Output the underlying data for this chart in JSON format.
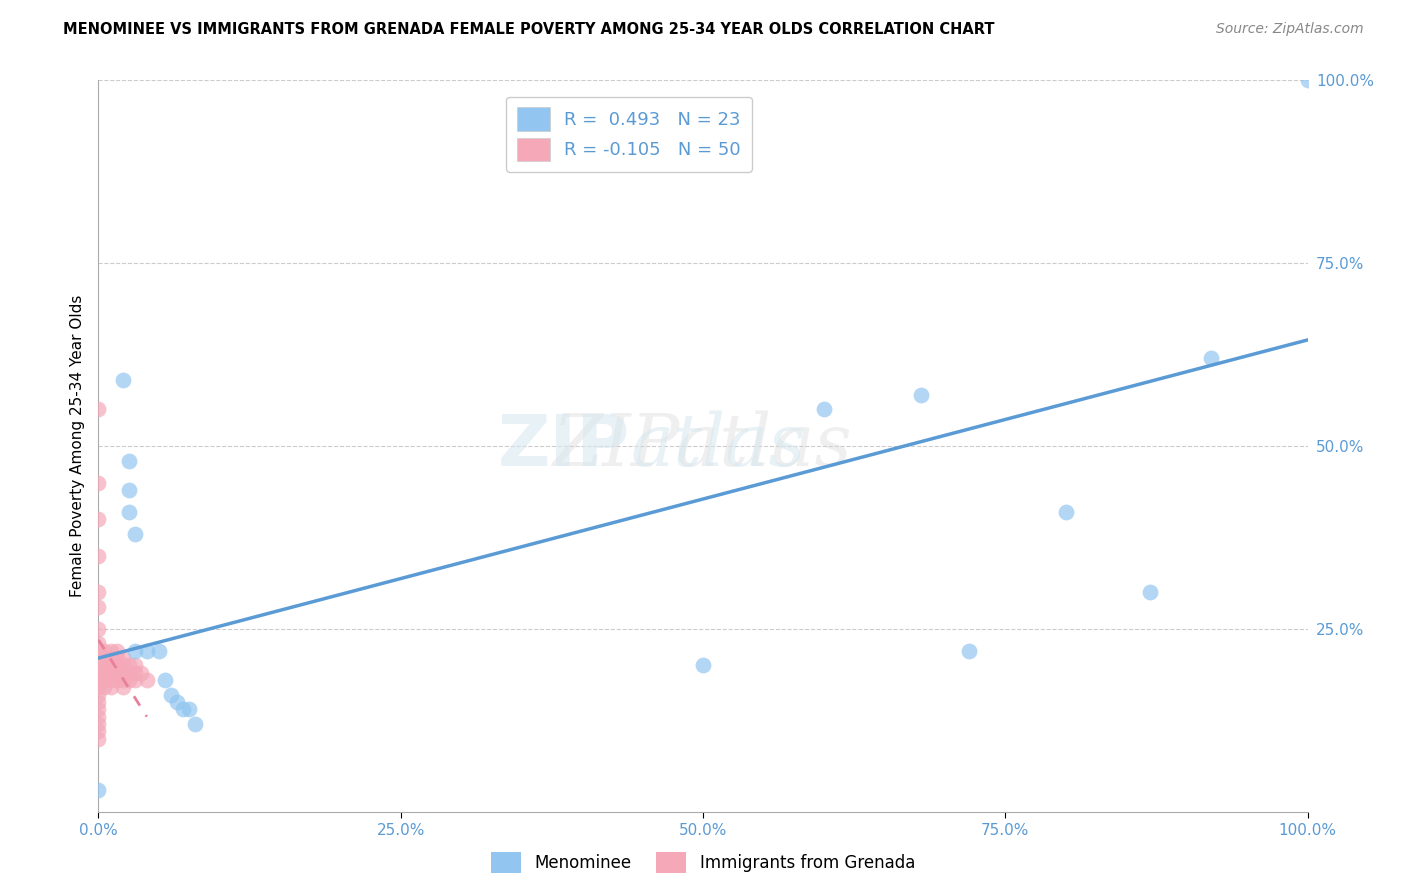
{
  "title": "MENOMINEE VS IMMIGRANTS FROM GRENADA FEMALE POVERTY AMONG 25-34 YEAR OLDS CORRELATION CHART",
  "source": "Source: ZipAtlas.com",
  "ylabel": "Female Poverty Among 25-34 Year Olds",
  "xlim": [
    0.0,
    1.0
  ],
  "ylim": [
    0.0,
    1.0
  ],
  "xticks": [
    0.0,
    0.25,
    0.5,
    0.75,
    1.0
  ],
  "yticks": [
    0.25,
    0.5,
    0.75,
    1.0
  ],
  "xtick_labels": [
    "0.0%",
    "25.0%",
    "50.0%",
    "75.0%",
    "100.0%"
  ],
  "ytick_labels": [
    "25.0%",
    "50.0%",
    "75.0%",
    "100.0%"
  ],
  "legend_r1": "R =  0.493",
  "legend_n1": "N = 23",
  "legend_r2": "R = -0.105",
  "legend_n2": "N = 50",
  "blue_color": "#92C5F0",
  "pink_color": "#F4A8B8",
  "line_blue": "#5B9BD5",
  "line_pink": "#E8809A",
  "tick_color": "#5B9BD5",
  "menominee_x": [
    0.0,
    0.02,
    0.025,
    0.025,
    0.025,
    0.03,
    0.03,
    0.04,
    0.05,
    0.055,
    0.06,
    0.065,
    0.07,
    0.075,
    0.08,
    0.5,
    0.6,
    0.68,
    0.72,
    0.8,
    0.87,
    0.92,
    1.0
  ],
  "menominee_y": [
    0.03,
    0.59,
    0.48,
    0.44,
    0.41,
    0.38,
    0.22,
    0.22,
    0.22,
    0.18,
    0.16,
    0.15,
    0.14,
    0.14,
    0.12,
    0.2,
    0.55,
    0.57,
    0.22,
    0.41,
    0.3,
    0.62,
    1.0
  ],
  "grenada_x": [
    0.0,
    0.0,
    0.0,
    0.0,
    0.0,
    0.0,
    0.0,
    0.0,
    0.0,
    0.0,
    0.0,
    0.0,
    0.0,
    0.0,
    0.0,
    0.0,
    0.0,
    0.0,
    0.0,
    0.0,
    0.005,
    0.005,
    0.005,
    0.005,
    0.005,
    0.005,
    0.01,
    0.01,
    0.01,
    0.01,
    0.01,
    0.01,
    0.015,
    0.015,
    0.015,
    0.015,
    0.015,
    0.02,
    0.02,
    0.02,
    0.02,
    0.02,
    0.025,
    0.025,
    0.025,
    0.03,
    0.03,
    0.03,
    0.035,
    0.04
  ],
  "grenada_y": [
    0.55,
    0.45,
    0.4,
    0.35,
    0.3,
    0.28,
    0.25,
    0.23,
    0.22,
    0.2,
    0.19,
    0.18,
    0.17,
    0.16,
    0.15,
    0.14,
    0.13,
    0.12,
    0.11,
    0.1,
    0.22,
    0.21,
    0.2,
    0.19,
    0.18,
    0.17,
    0.22,
    0.21,
    0.2,
    0.19,
    0.18,
    0.17,
    0.22,
    0.21,
    0.2,
    0.19,
    0.18,
    0.21,
    0.2,
    0.19,
    0.18,
    0.17,
    0.2,
    0.19,
    0.18,
    0.2,
    0.19,
    0.18,
    0.19,
    0.18
  ],
  "blue_trendline_x": [
    0.0,
    1.0
  ],
  "blue_trendline_y": [
    0.21,
    0.645
  ],
  "pink_trendline_x": [
    0.0,
    0.04
  ],
  "pink_trendline_y": [
    0.235,
    0.13
  ],
  "background_color": "#FFFFFF",
  "grid_color": "#CCCCCC",
  "watermark": "ZIPatlas"
}
